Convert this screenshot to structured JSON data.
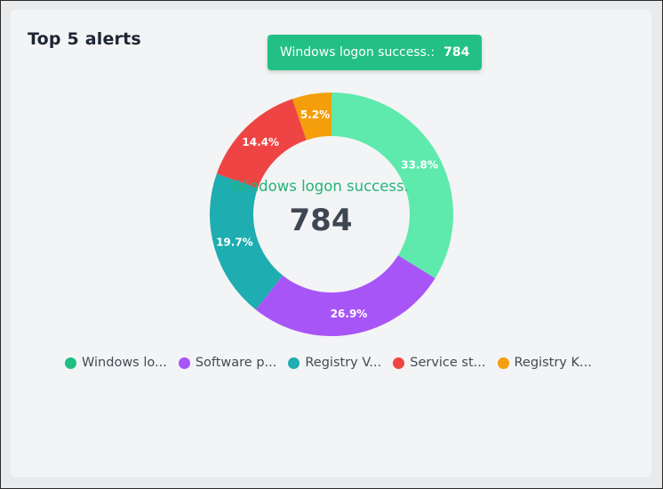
{
  "card": {
    "title": "Top 5 alerts"
  },
  "tooltip": {
    "label": "Windows logon success.:",
    "value": "784",
    "color": "#22c085"
  },
  "center": {
    "label": "Windows logon success.",
    "value": "784"
  },
  "legend": [
    {
      "label": "Windows lo...",
      "color": "#1fbf82"
    },
    {
      "label": "Software p...",
      "color": "#a855f7"
    },
    {
      "label": "Registry V...",
      "color": "#1eadb0"
    },
    {
      "label": "Service st...",
      "color": "#ef4444"
    },
    {
      "label": "Registry K...",
      "color": "#f59e0b"
    }
  ],
  "chart_data": {
    "type": "pie",
    "subtype": "donut",
    "title": "Top 5 alerts",
    "slices": [
      {
        "value": 33.8,
        "label": "33.8%",
        "color": "#5eeaad"
      },
      {
        "value": 26.9,
        "label": "26.9%",
        "color": "#a855f7"
      },
      {
        "value": 19.7,
        "label": "19.7%",
        "color": "#1eadb0"
      },
      {
        "value": 14.4,
        "label": "14.4%",
        "color": "#ef4444"
      },
      {
        "value": 5.2,
        "label": "5.2%",
        "color": "#f59e0b"
      }
    ],
    "legend_position": "bottom"
  }
}
